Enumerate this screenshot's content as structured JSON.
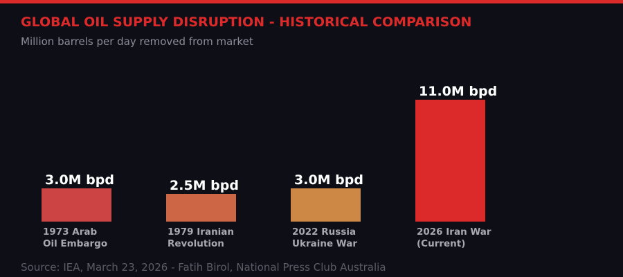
{
  "chart_data": {
    "type": "bar",
    "title": "GLOBAL OIL SUPPLY DISRUPTION - HISTORICAL COMPARISON",
    "subtitle": "Million barrels per day removed from market",
    "source": "Source: IEA, March 23, 2026 - Fatih Birol, National Press Club Australia",
    "categories": [
      [
        "1973 Arab",
        "Oil Embargo"
      ],
      [
        "1979 Iranian",
        "Revolution"
      ],
      [
        "2022 Russia",
        "Ukraine War"
      ],
      [
        "2026 Iran War",
        "(Current)"
      ]
    ],
    "values": [
      3.0,
      2.5,
      3.0,
      11.0
    ],
    "data_labels": [
      "3.0M bpd",
      "2.5M bpd",
      "3.0M bpd",
      "11.0M bpd"
    ],
    "colors": [
      "#cc4444",
      "#cc6644",
      "#cc8844",
      "#dc2a2a"
    ],
    "ylim": [
      0,
      11
    ],
    "grid": false
  },
  "colors": {
    "accent": "#dc2a2a",
    "background": "#0e0f16"
  }
}
